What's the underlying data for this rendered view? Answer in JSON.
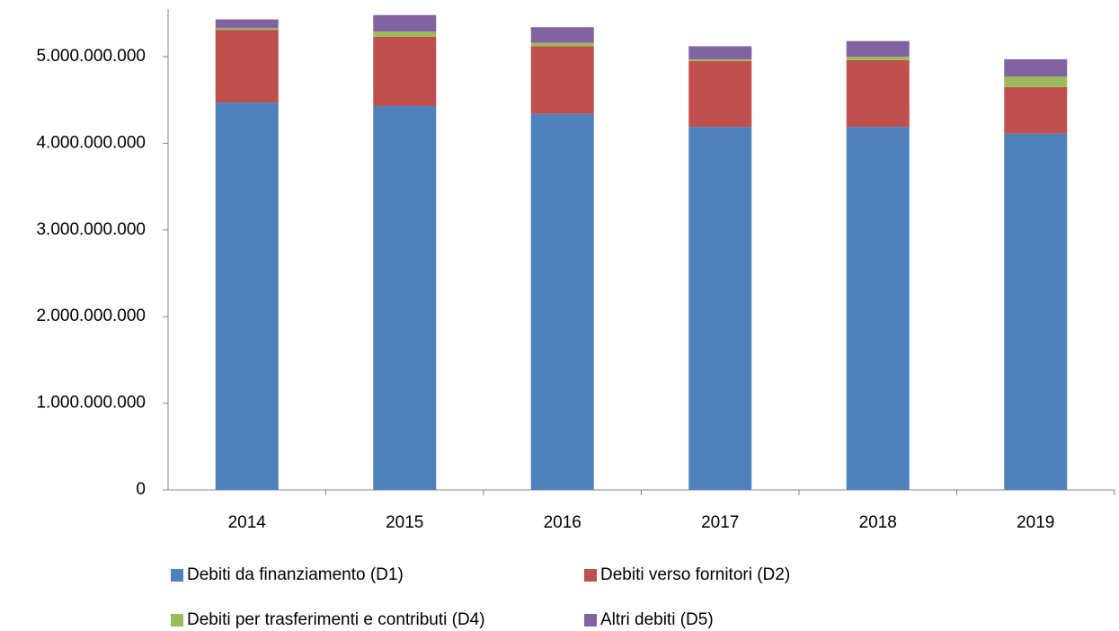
{
  "chart_data": {
    "type": "stacked_bar",
    "categories": [
      "2014",
      "2015",
      "2016",
      "2017",
      "2018",
      "2019"
    ],
    "series": [
      {
        "name": "Debiti da finanziamento (D1)",
        "color": "#4f81bd",
        "values": [
          4470000000,
          4430000000,
          4340000000,
          4190000000,
          4190000000,
          4110000000
        ]
      },
      {
        "name": "Debiti verso fornitori (D2)",
        "color": "#c0504d",
        "values": [
          840000000,
          800000000,
          780000000,
          760000000,
          770000000,
          540000000
        ]
      },
      {
        "name": "Debiti per trasferimenti e contributi (D4)",
        "color": "#9bbb59",
        "values": [
          20000000,
          60000000,
          40000000,
          20000000,
          40000000,
          120000000
        ]
      },
      {
        "name": "Altri debiti (D5)",
        "color": "#8064a2",
        "values": [
          100000000,
          190000000,
          180000000,
          150000000,
          180000000,
          200000000
        ]
      }
    ],
    "ylim": [
      0,
      5550000000
    ],
    "yticks": [
      0,
      {
        "value": 1000000000,
        "label": "1.000.000.000"
      },
      {
        "value": 2000000000,
        "label": "2.000.000.000"
      },
      {
        "value": 3000000000,
        "label": "3.000.000.000"
      },
      {
        "value": 4000000000,
        "label": "4.000.000.000"
      },
      {
        "value": 5000000000,
        "label": "5.000.000.000"
      }
    ],
    "grid": false,
    "legend": "bottom"
  }
}
